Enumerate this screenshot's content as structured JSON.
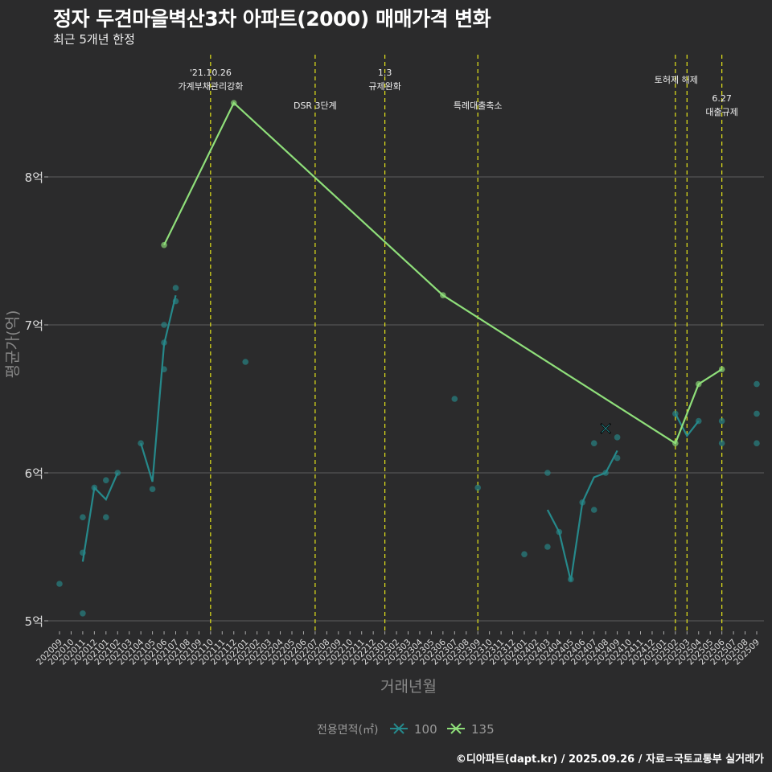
{
  "chart_data": {
    "type": "line",
    "title": "정자 두견마을벽산3차 아파트(2000) 매매가격 변화",
    "subtitle": "최근 5개년 한정",
    "xlabel": "거래년월",
    "ylabel": "평균가(억)",
    "ylim": [
      4.93,
      8.95
    ],
    "yticks": [
      5,
      6,
      7,
      8
    ],
    "ytick_labels": [
      "5억",
      "6억",
      "7억",
      "8억"
    ],
    "grid": true,
    "x": [
      "202009",
      "202010",
      "202011",
      "202012",
      "202101",
      "202102",
      "202103",
      "202104",
      "202105",
      "202106",
      "202107",
      "202108",
      "202109",
      "202110",
      "202111",
      "202112",
      "202201",
      "202202",
      "202203",
      "202204",
      "202205",
      "202206",
      "202207",
      "202208",
      "202209",
      "202210",
      "202211",
      "202212",
      "202301",
      "202302",
      "202303",
      "202304",
      "202305",
      "202306",
      "202307",
      "202308",
      "202309",
      "202310",
      "202311",
      "202312",
      "202401",
      "202402",
      "202403",
      "202404",
      "202405",
      "202406",
      "202407",
      "202408",
      "202409",
      "202410",
      "202411",
      "202412",
      "202501",
      "202502",
      "202503",
      "202504",
      "202505",
      "202506",
      "202507",
      "202508",
      "202509"
    ],
    "legend": {
      "title": "전용면적(㎡)",
      "position": "bottom"
    },
    "series": [
      {
        "name": "100",
        "color": "#26898b",
        "line_segments": [
          [
            [
              "202011",
              5.4
            ],
            [
              "202012",
              5.9
            ],
            [
              "202101",
              5.82
            ],
            [
              "202102",
              6.0
            ]
          ],
          [
            [
              "202104",
              6.2
            ],
            [
              "202105",
              5.94
            ],
            [
              "202106",
              6.87
            ],
            [
              "202107",
              7.2
            ]
          ],
          [
            [
              "202403",
              5.75
            ],
            [
              "202404",
              5.6
            ],
            [
              "202405",
              5.27
            ],
            [
              "202406",
              5.8
            ],
            [
              "202407",
              5.97
            ],
            [
              "202408",
              6.0
            ],
            [
              "202409",
              6.15
            ]
          ],
          [
            [
              "202502",
              6.4
            ],
            [
              "202503",
              6.25
            ],
            [
              "202504",
              6.35
            ]
          ]
        ],
        "points": [
          [
            "202009",
            5.25
          ],
          [
            "202011",
            5.7
          ],
          [
            "202011",
            5.46
          ],
          [
            "202011",
            5.05
          ],
          [
            "202012",
            5.9
          ],
          [
            "202101",
            5.95
          ],
          [
            "202101",
            5.7
          ],
          [
            "202102",
            6.0
          ],
          [
            "202104",
            6.2
          ],
          [
            "202105",
            5.89
          ],
          [
            "202106",
            7.0
          ],
          [
            "202106",
            6.88
          ],
          [
            "202106",
            6.7
          ],
          [
            "202107",
            7.25
          ],
          [
            "202107",
            7.16
          ],
          [
            "202201",
            6.75
          ],
          [
            "202307",
            6.5
          ],
          [
            "202309",
            5.9
          ],
          [
            "202401",
            5.45
          ],
          [
            "202403",
            6.0
          ],
          [
            "202403",
            5.5
          ],
          [
            "202404",
            5.6
          ],
          [
            "202405",
            5.28
          ],
          [
            "202406",
            5.8
          ],
          [
            "202407",
            6.2
          ],
          [
            "202407",
            5.75
          ],
          [
            "202408",
            6.0
          ],
          [
            "202409",
            6.24
          ],
          [
            "202409",
            6.1
          ],
          [
            "202502",
            6.4
          ],
          [
            "202504",
            6.35
          ],
          [
            "202506",
            6.35
          ],
          [
            "202506",
            6.2
          ],
          [
            "202509",
            6.6
          ],
          [
            "202509",
            6.4
          ],
          [
            "202509",
            6.2
          ]
        ],
        "cancelled": [
          [
            "202408",
            6.3
          ]
        ]
      },
      {
        "name": "135",
        "color": "#8fdf7a",
        "line_segments": [
          [
            [
              "202106",
              7.54
            ],
            [
              "202112",
              8.5
            ],
            [
              "202306",
              7.2
            ],
            [
              "202502",
              6.2
            ],
            [
              "202504",
              6.6
            ],
            [
              "202506",
              6.7
            ]
          ]
        ],
        "points": [
          [
            "202106",
            7.54
          ],
          [
            "202112",
            8.5
          ],
          [
            "202306",
            7.2
          ],
          [
            "202502",
            6.2
          ],
          [
            "202504",
            6.6
          ],
          [
            "202506",
            6.7
          ]
        ],
        "cancelled": []
      }
    ],
    "events": [
      {
        "x": "202110",
        "lines": [
          "'21.10.26",
          "가계부채관리강화"
        ]
      },
      {
        "x": "202207",
        "lines": [
          "DSR 3단계"
        ]
      },
      {
        "x": "202301",
        "lines": [
          "1.3",
          "규제완화"
        ]
      },
      {
        "x": "202309",
        "lines": [
          "특례대출축소"
        ]
      },
      {
        "x": "202502",
        "lines": [
          "토허제 해제"
        ]
      },
      {
        "x": "202503",
        "lines": []
      },
      {
        "x": "202506",
        "lines": [
          "6.27",
          "대출규제"
        ]
      }
    ],
    "event_color": "#e6e619"
  },
  "caption": "©디아파트(dapt.kr) / 2025.09.26 / 자료=국토교통부 실거래가"
}
